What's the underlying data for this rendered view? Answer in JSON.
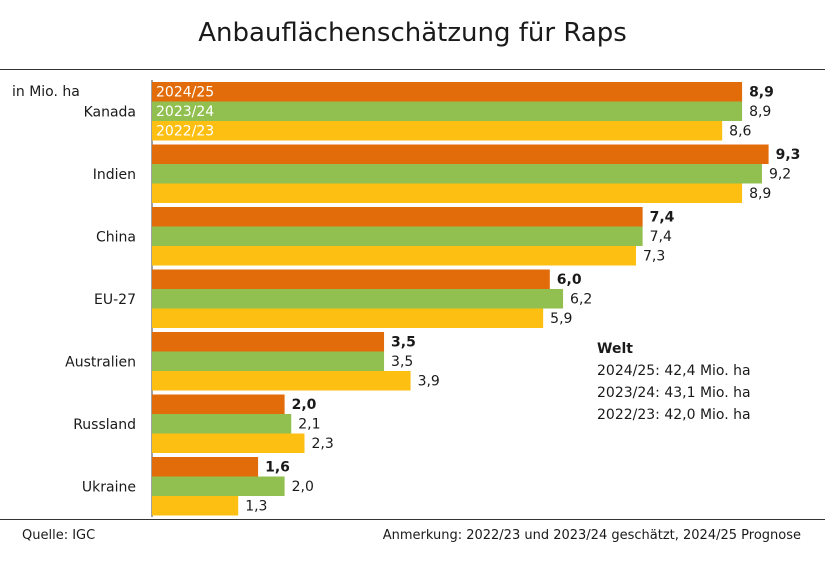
{
  "chart_data": {
    "type": "bar",
    "orientation": "horizontal",
    "title": "Anbauflächenschätzung für Raps",
    "unit_label": "in Mio. ha",
    "categories": [
      "Kanada",
      "Indien",
      "China",
      "EU-27",
      "Australien",
      "Russland",
      "Ukraine"
    ],
    "series": [
      {
        "name": "2024/25",
        "color": "#e36c0a",
        "bold_labels": true,
        "values": [
          8.9,
          9.3,
          7.4,
          6.0,
          3.5,
          2.0,
          1.6
        ],
        "labels": [
          "8,9",
          "9,3",
          "7,4",
          "6,0",
          "3,5",
          "2,0",
          "1,6"
        ]
      },
      {
        "name": "2023/24",
        "color": "#92c050",
        "values": [
          8.9,
          9.2,
          7.4,
          6.2,
          3.5,
          2.1,
          2.0
        ],
        "labels": [
          "8,9",
          "9,2",
          "7,4",
          "6,2",
          "3,5",
          "2,1",
          "2,0"
        ]
      },
      {
        "name": "2022/23",
        "color": "#fdbf12",
        "values": [
          8.6,
          8.9,
          7.3,
          5.9,
          3.9,
          2.3,
          1.3
        ],
        "labels": [
          "8,6",
          "8,9",
          "7,3",
          "5,9",
          "3,9",
          "2,3",
          "1,3"
        ]
      }
    ],
    "grid": false,
    "legend": "inside-first-group"
  },
  "welt": {
    "heading": "Welt",
    "lines": [
      "2024/25: 42,4 Mio. ha",
      "2023/24: 43,1 Mio. ha",
      "2022/23: 42,0 Mio. ha"
    ]
  },
  "footer": {
    "source": "Quelle: IGC",
    "note": "Anmerkung: 2022/23 und 2023/24 geschätzt, 2024/25 Prognose"
  }
}
